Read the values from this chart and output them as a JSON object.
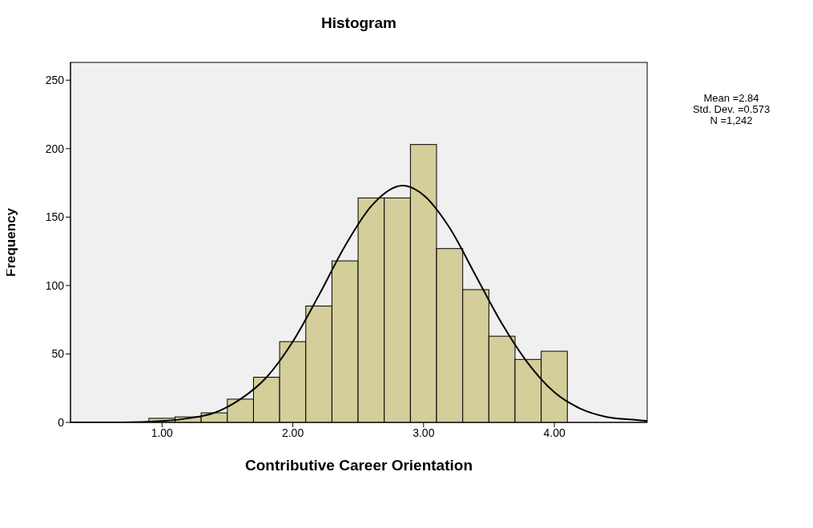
{
  "chart_data": {
    "type": "histogram",
    "title": "Histogram",
    "xlabel": "Contributive Career Orientation",
    "ylabel": "Frequency",
    "bins": [
      0.9,
      1.1,
      1.3,
      1.5,
      1.7,
      1.9,
      2.1,
      2.3,
      2.5,
      2.7,
      2.9,
      3.1,
      3.3,
      3.5,
      3.7,
      3.9,
      4.1
    ],
    "values": [
      3,
      4,
      7,
      17,
      33,
      59,
      85,
      118,
      164,
      164,
      203,
      127,
      97,
      63,
      46,
      52
    ],
    "color": "#d3ce9a",
    "series": [
      {
        "type": "line",
        "color": "#000000",
        "x": [
          0.3,
          0.7,
          1.0,
          1.2,
          1.4,
          1.6,
          1.8,
          2.0,
          2.2,
          2.4,
          2.6,
          2.84,
          3.0,
          3.2,
          3.4,
          3.6,
          3.8,
          4.0,
          4.2,
          4.4,
          4.6,
          4.71
        ],
        "values": [
          0,
          0,
          1,
          3,
          7,
          17,
          33,
          59,
          93,
          129,
          158,
          173,
          166,
          142,
          107,
          72,
          43,
          22,
          10,
          4,
          2,
          1
        ]
      }
    ],
    "xlim": [
      0.3,
      4.71
    ],
    "xticks": [
      {
        "value": 1,
        "label": "1.00"
      },
      {
        "value": 2,
        "label": "2.00"
      },
      {
        "value": 3,
        "label": "3.00"
      },
      {
        "value": 4,
        "label": "4.00"
      }
    ],
    "ylim": [
      0,
      263
    ],
    "yticks": [
      0,
      50,
      100,
      150,
      200,
      250
    ],
    "annotations": [
      "Mean =2.84",
      "Std. Dev. =0.573",
      "N =1,242"
    ]
  }
}
